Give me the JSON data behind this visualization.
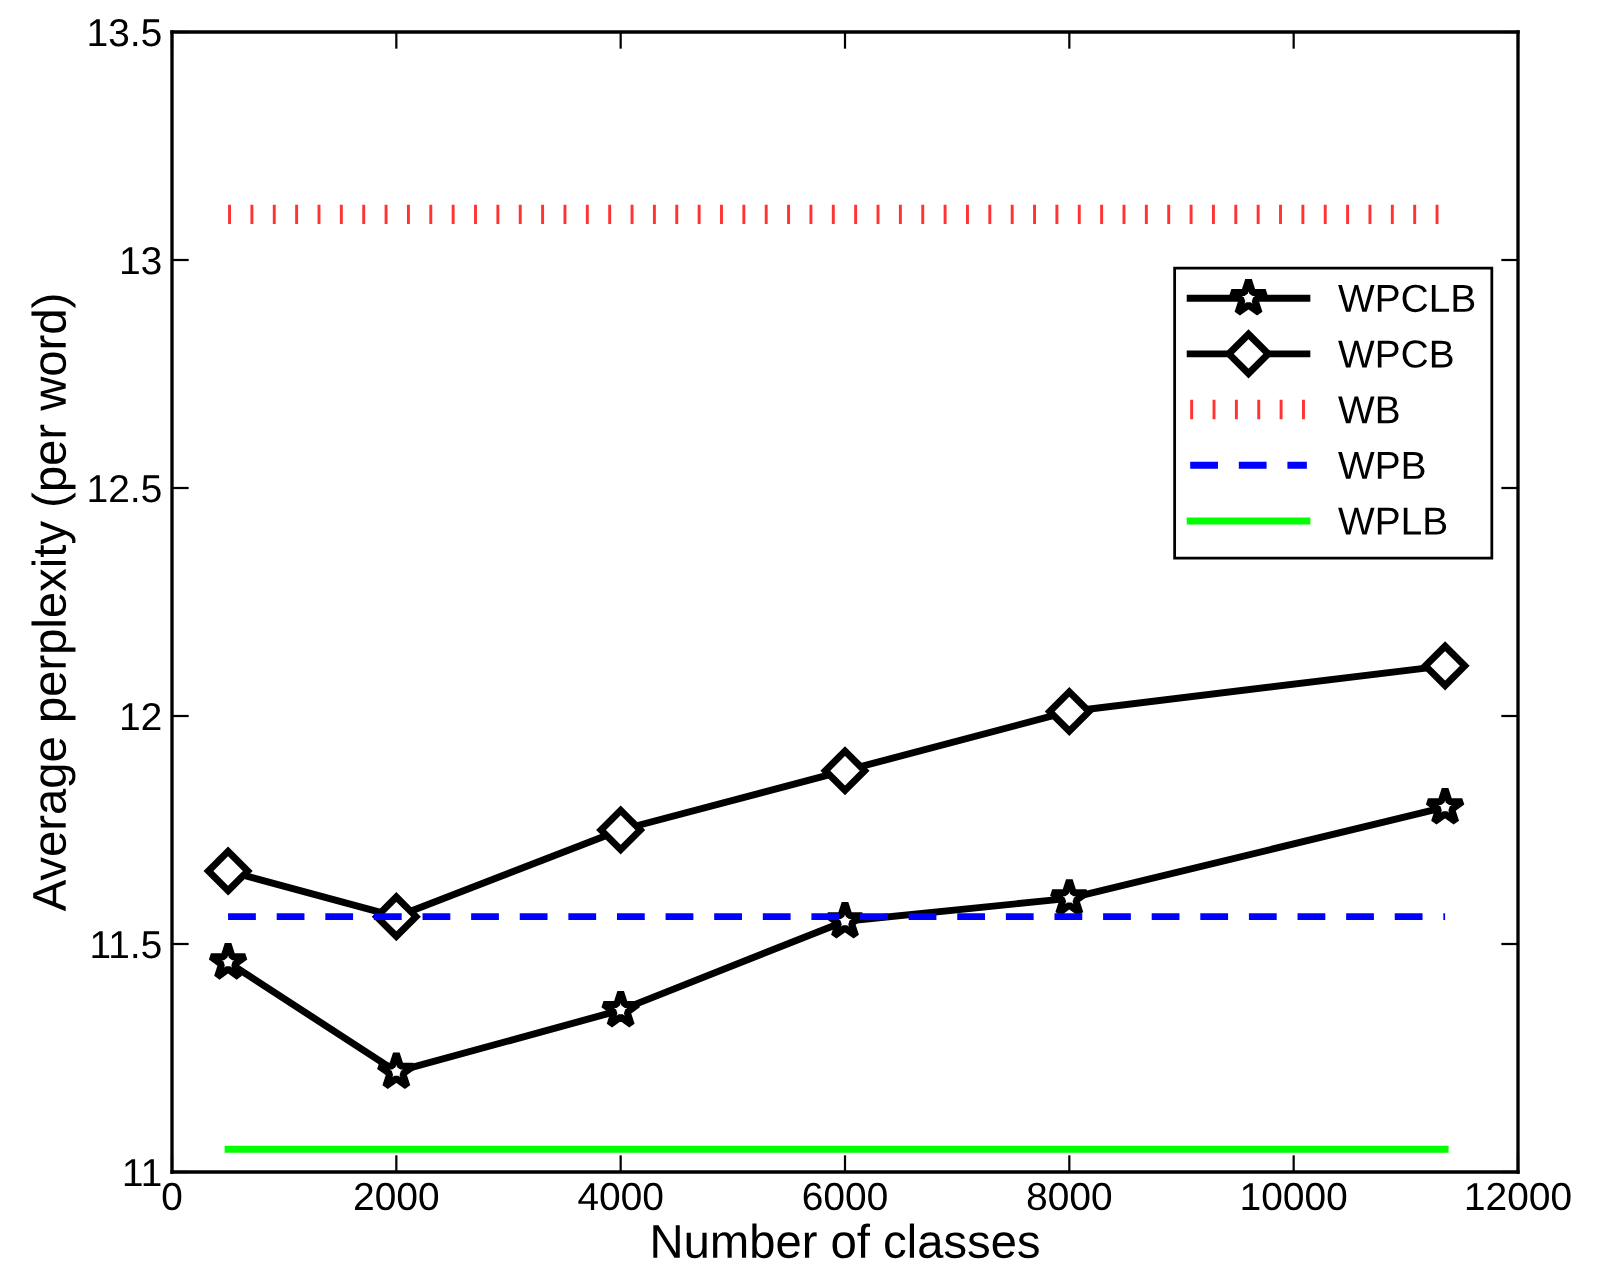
{
  "chart_data": {
    "type": "line",
    "xlabel": "Number of classes",
    "ylabel": "Average perplexity (per word)",
    "xlim": [
      0,
      12000
    ],
    "xticks": [
      0,
      2000,
      4000,
      6000,
      8000,
      10000,
      12000
    ],
    "ylim": [
      11,
      13.5
    ],
    "yticks": [
      11,
      11.5,
      12,
      12.5,
      13,
      13.5
    ],
    "grid": false,
    "legend": "top right",
    "series": [
      {
        "name": "WPCLB",
        "color": "#000000",
        "marker": "star",
        "line_style": "solid",
        "x": [
          500,
          2000,
          4000,
          6000,
          8000,
          11350
        ],
        "values": [
          11.46,
          11.22,
          11.355,
          11.55,
          11.6,
          11.8
        ]
      },
      {
        "name": "WPCB",
        "color": "#000000",
        "marker": "diamond",
        "line_style": "solid",
        "x": [
          500,
          2000,
          4000,
          6000,
          8000,
          11350
        ],
        "values": [
          11.66,
          11.56,
          11.75,
          11.88,
          12.01,
          12.11
        ]
      },
      {
        "name": "WB",
        "color": "#ff3333",
        "marker": "none",
        "line_style": "dotted",
        "x": [
          500,
          11350
        ],
        "values": [
          13.1,
          13.1
        ]
      },
      {
        "name": "WPB",
        "color": "#0000ff",
        "marker": "none",
        "line_style": "dashed",
        "x": [
          500,
          11350
        ],
        "values": [
          11.56,
          11.56
        ]
      },
      {
        "name": "WPLB",
        "color": "#00ff00",
        "marker": "none",
        "line_style": "solid",
        "x": [
          500,
          11350
        ],
        "values": [
          11.05,
          11.05
        ]
      }
    ]
  }
}
